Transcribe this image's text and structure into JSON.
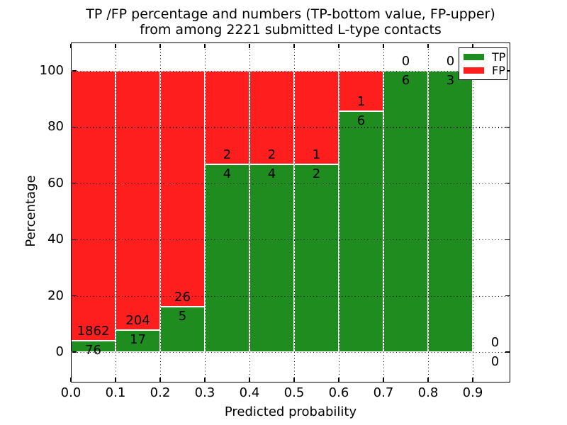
{
  "figure": {
    "title_line1": "TP /FP percentage and numbers (TP-bottom value, FP-upper)",
    "title_line2": "from among 2221 submitted L-type contacts"
  },
  "chart_data": {
    "type": "bar",
    "variant": "stacked-percentage",
    "title": "TP /FP percentage and numbers (TP-bottom value, FP-upper)\nfrom among 2221 submitted L-type contacts",
    "xlabel": "Predicted probability",
    "ylabel": "Percentage",
    "x_tick_labels": [
      "0.0",
      "0.1",
      "0.2",
      "0.3",
      "0.4",
      "0.5",
      "0.6",
      "0.7",
      "0.8",
      "0.9"
    ],
    "y_ticks": [
      0,
      20,
      40,
      60,
      80,
      100
    ],
    "y_tick_labels": [
      "0",
      "20",
      "40",
      "60",
      "80",
      "100"
    ],
    "xlim": [
      0.0,
      0.984
    ],
    "ylim": [
      -10.8,
      110.1
    ],
    "bin_width": 0.1,
    "grid": "dotted-black-both-axes",
    "total_contacts": 2221,
    "annotation_rule": "FP count above TP/FP boundary, TP count below it",
    "legend": {
      "position": "upper right",
      "items": [
        {
          "label": "TP",
          "color": "#1e8c1e"
        },
        {
          "label": "FP",
          "color": "#ff1e1e"
        }
      ]
    },
    "bins": [
      {
        "x_start": 0.0,
        "x_end": 0.1,
        "tp": 76,
        "fp": 1862
      },
      {
        "x_start": 0.1,
        "x_end": 0.2,
        "tp": 17,
        "fp": 204
      },
      {
        "x_start": 0.2,
        "x_end": 0.3,
        "tp": 5,
        "fp": 26
      },
      {
        "x_start": 0.3,
        "x_end": 0.4,
        "tp": 4,
        "fp": 2
      },
      {
        "x_start": 0.4,
        "x_end": 0.5,
        "tp": 4,
        "fp": 2
      },
      {
        "x_start": 0.5,
        "x_end": 0.6,
        "tp": 2,
        "fp": 1
      },
      {
        "x_start": 0.6,
        "x_end": 0.7,
        "tp": 6,
        "fp": 1
      },
      {
        "x_start": 0.7,
        "x_end": 0.8,
        "tp": 6,
        "fp": 0
      },
      {
        "x_start": 0.8,
        "x_end": 0.9,
        "tp": 3,
        "fp": 0
      },
      {
        "x_start": 0.9,
        "x_end": 1.0,
        "tp": 0,
        "fp": 0
      }
    ]
  }
}
